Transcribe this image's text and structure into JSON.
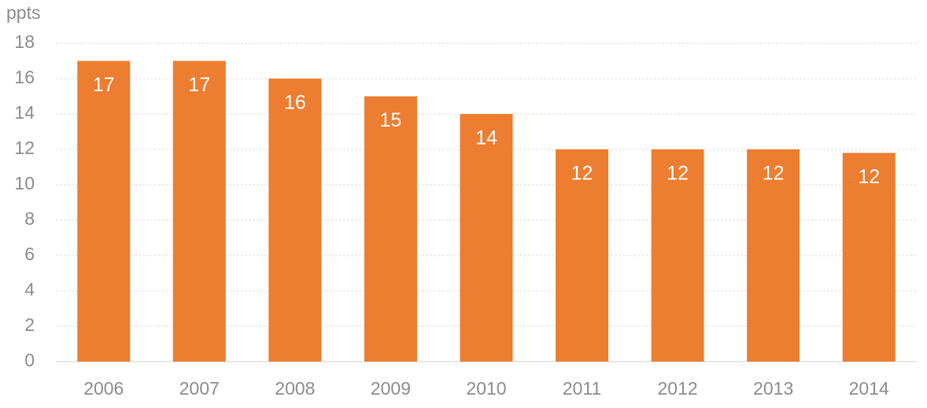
{
  "chart_data": {
    "type": "bar",
    "y_label": "ppts",
    "categories": [
      "2006",
      "2007",
      "2008",
      "2009",
      "2010",
      "2011",
      "2012",
      "2013",
      "2014"
    ],
    "values": [
      17,
      17,
      16,
      15,
      14,
      12,
      12,
      12,
      11.8
    ],
    "value_labels": [
      "17",
      "17",
      "16",
      "15",
      "14",
      "12",
      "12",
      "12",
      "12"
    ],
    "color": "#ed7d31",
    "ylim": [
      0,
      18
    ],
    "yticks": [
      0,
      2,
      4,
      6,
      8,
      10,
      12,
      14,
      16,
      18
    ],
    "grid": true
  }
}
